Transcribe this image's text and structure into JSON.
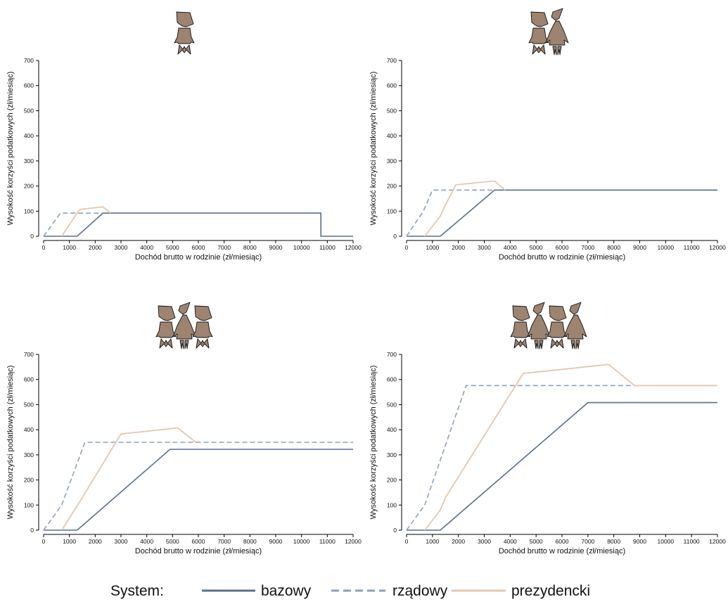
{
  "chart_data": [
    {
      "type": "line",
      "children": 1,
      "xlabel": "Dochód brutto w rodzinie (zł/miesiąc)",
      "ylabel": "Wysokość korzyści podatkowych (zł/miesiąc)",
      "xlim": [
        0,
        12000
      ],
      "ylim": [
        0,
        700
      ],
      "xticks": [
        0,
        1000,
        2000,
        3000,
        4000,
        5000,
        6000,
        7000,
        8000,
        9000,
        10000,
        11000,
        12000
      ],
      "yticks": [
        0,
        100,
        200,
        300,
        400,
        500,
        600,
        700
      ],
      "series": [
        {
          "name": "bazowy",
          "points": [
            [
              0,
              0
            ],
            [
              1300,
              0
            ],
            [
              2300,
              92
            ],
            [
              10750,
              92
            ],
            [
              10750,
              0
            ],
            [
              12000,
              0
            ]
          ]
        },
        {
          "name": "rządowy",
          "points": [
            [
              0,
              0
            ],
            [
              650,
              92
            ],
            [
              2300,
              92
            ]
          ]
        },
        {
          "name": "prezydencki",
          "points": [
            [
              700,
              0
            ],
            [
              1400,
              107
            ],
            [
              2300,
              117
            ],
            [
              2600,
              92
            ]
          ]
        }
      ]
    },
    {
      "type": "line",
      "children": 2,
      "xlabel": "Dochód brutto w rodzinie (zł/miesiąc)",
      "ylabel": "Wysokość korzyści podatkowych (zł/miesiąc)",
      "xlim": [
        0,
        12000
      ],
      "ylim": [
        0,
        700
      ],
      "xticks": [
        0,
        1000,
        2000,
        3000,
        4000,
        5000,
        6000,
        7000,
        8000,
        9000,
        10000,
        11000,
        12000
      ],
      "yticks": [
        0,
        100,
        200,
        300,
        400,
        500,
        600,
        700
      ],
      "series": [
        {
          "name": "bazowy",
          "points": [
            [
              0,
              0
            ],
            [
              1300,
              0
            ],
            [
              3400,
              184
            ],
            [
              12000,
              184
            ]
          ]
        },
        {
          "name": "rządowy",
          "points": [
            [
              0,
              0
            ],
            [
              650,
              100
            ],
            [
              1000,
              184
            ],
            [
              3400,
              184
            ]
          ]
        },
        {
          "name": "prezydencki",
          "points": [
            [
              700,
              0
            ],
            [
              1300,
              80
            ],
            [
              1500,
              125
            ],
            [
              1900,
              205
            ],
            [
              3400,
              220
            ],
            [
              3800,
              184
            ]
          ]
        }
      ]
    },
    {
      "type": "line",
      "children": 3,
      "xlabel": "Dochód brutto w rodzinie (zł/miesiąc)",
      "ylabel": "Wysokość korzyści podatkowych (zł/miesiąc)",
      "xlim": [
        0,
        12000
      ],
      "ylim": [
        0,
        700
      ],
      "xticks": [
        0,
        1000,
        2000,
        3000,
        4000,
        5000,
        6000,
        7000,
        8000,
        9000,
        10000,
        11000,
        12000
      ],
      "yticks": [
        0,
        100,
        200,
        300,
        400,
        500,
        600,
        700
      ],
      "series": [
        {
          "name": "bazowy",
          "points": [
            [
              0,
              0
            ],
            [
              1300,
              0
            ],
            [
              4900,
              322
            ],
            [
              12000,
              322
            ]
          ]
        },
        {
          "name": "rządowy",
          "points": [
            [
              0,
              0
            ],
            [
              700,
              100
            ],
            [
              1600,
              350
            ],
            [
              12000,
              350
            ]
          ]
        },
        {
          "name": "prezydencki",
          "points": [
            [
              700,
              0
            ],
            [
              1200,
              80
            ],
            [
              1500,
              130
            ],
            [
              3000,
              383
            ],
            [
              5200,
              407
            ],
            [
              5900,
              350
            ]
          ]
        }
      ]
    },
    {
      "type": "line",
      "children": 4,
      "xlabel": "Dochód brutto w rodzinie (zł/miesiąc)",
      "ylabel": "Wysokość korzyści podatkowych (zł/miesiąc)",
      "xlim": [
        0,
        12000
      ],
      "ylim": [
        0,
        700
      ],
      "xticks": [
        0,
        1000,
        2000,
        3000,
        4000,
        5000,
        6000,
        7000,
        8000,
        9000,
        10000,
        11000,
        12000
      ],
      "yticks": [
        0,
        100,
        200,
        300,
        400,
        500,
        600,
        700
      ],
      "series": [
        {
          "name": "bazowy",
          "points": [
            [
              0,
              0
            ],
            [
              1300,
              0
            ],
            [
              7000,
              508
            ],
            [
              12000,
              508
            ]
          ]
        },
        {
          "name": "rządowy",
          "points": [
            [
              0,
              0
            ],
            [
              700,
              100
            ],
            [
              2300,
              576
            ],
            [
              12000,
              576
            ]
          ]
        },
        {
          "name": "prezydencki",
          "points": [
            [
              700,
              0
            ],
            [
              1300,
              80
            ],
            [
              1500,
              130
            ],
            [
              4500,
              624
            ],
            [
              7800,
              660
            ],
            [
              8800,
              576
            ],
            [
              12000,
              576
            ]
          ]
        }
      ]
    }
  ],
  "legend": {
    "title": "System:",
    "items": [
      {
        "label": "bazowy",
        "color": "#5a6f8a",
        "style": "solid"
      },
      {
        "label": "rządowy",
        "color": "#8ea0b8",
        "style": "dashed"
      },
      {
        "label": "prezydencki",
        "color": "#e3c7b0",
        "style": "solid"
      }
    ]
  }
}
